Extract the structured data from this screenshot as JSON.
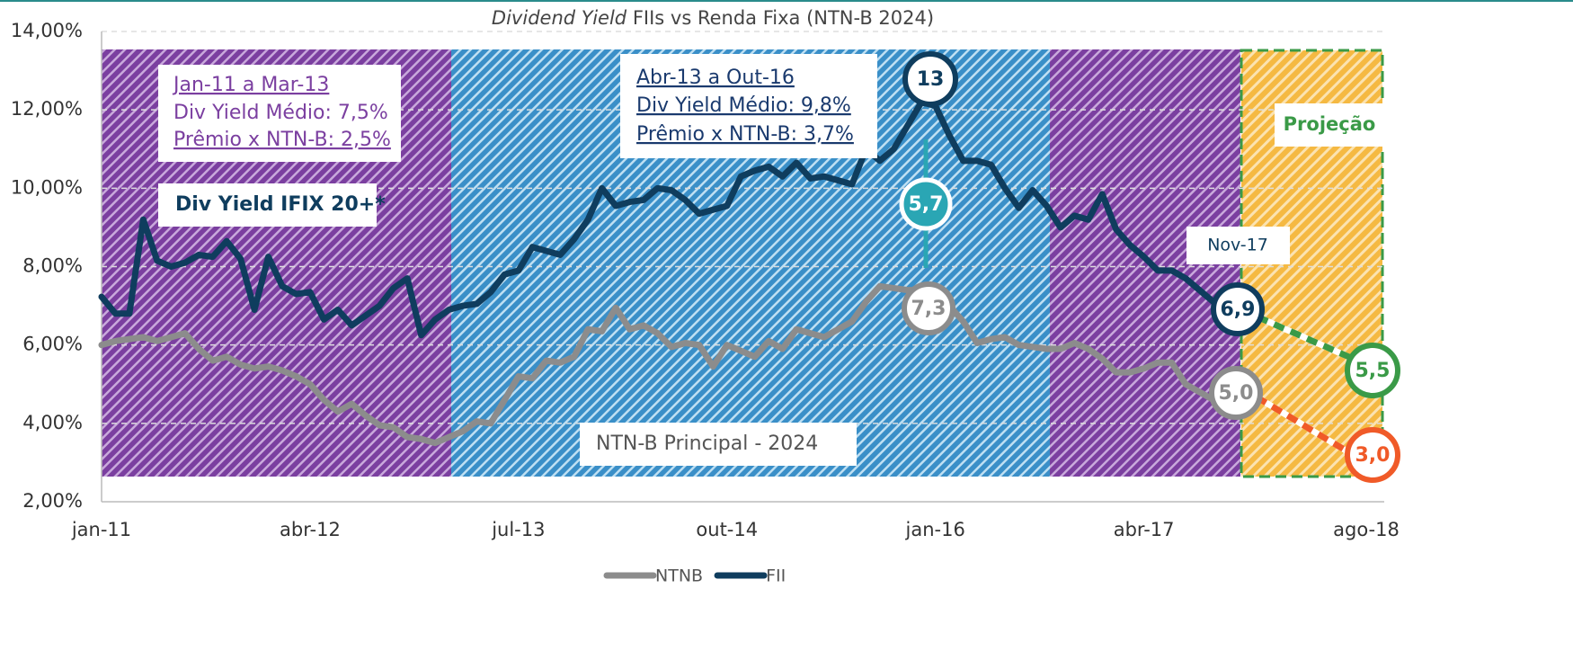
{
  "chart_data": {
    "type": "line",
    "title": [
      "Dividend Yield",
      "FIIs vs Renda Fixa (NTN-B 2024)"
    ],
    "categories": [
      "jan-11",
      null,
      null,
      null,
      null,
      null,
      null,
      null,
      null,
      null,
      null,
      null,
      null,
      null,
      null,
      "abr-12",
      null,
      null,
      null,
      null,
      null,
      null,
      null,
      null,
      null,
      null,
      null,
      null,
      null,
      null,
      "jul-13",
      null,
      null,
      null,
      null,
      null,
      null,
      null,
      null,
      null,
      null,
      null,
      null,
      null,
      null,
      "out-14",
      null,
      null,
      null,
      null,
      null,
      null,
      null,
      null,
      null,
      null,
      null,
      null,
      null,
      null,
      "jan-16",
      null,
      null,
      null,
      null,
      null,
      null,
      null,
      null,
      null,
      null,
      null,
      null,
      null,
      null,
      "abr-17",
      null,
      null,
      null,
      null,
      null,
      null,
      null,
      null,
      null,
      null,
      null,
      null,
      null,
      null,
      null,
      "ago-18"
    ],
    "series": [
      {
        "name": "NTNB",
        "color": "#8c8c8c",
        "values": [
          6.0,
          6.1,
          6.15,
          6.2,
          6.1,
          6.2,
          6.3,
          5.9,
          5.6,
          5.7,
          5.5,
          5.4,
          5.45,
          5.35,
          5.2,
          5.0,
          4.6,
          4.3,
          4.5,
          4.2,
          3.95,
          3.9,
          3.65,
          3.6,
          3.5,
          3.65,
          3.8,
          4.05,
          4.0,
          4.6,
          5.2,
          5.15,
          5.6,
          5.55,
          5.7,
          6.4,
          6.35,
          6.95,
          6.4,
          6.5,
          6.3,
          5.95,
          6.05,
          6.0,
          5.45,
          6.0,
          5.85,
          5.7,
          6.1,
          5.9,
          6.4,
          6.3,
          6.2,
          6.4,
          6.6,
          7.1,
          7.5,
          7.45,
          7.4,
          7.4,
          7.3,
          7.0,
          6.6,
          6.05,
          6.15,
          6.2,
          6.0,
          5.95,
          5.9,
          5.9,
          6.05,
          5.9,
          5.65,
          5.3,
          5.3,
          5.4,
          5.55,
          5.55,
          5.0,
          4.8,
          4.6,
          4.45,
          4.9,
          null,
          null,
          null,
          null,
          null,
          null,
          null,
          null,
          null
        ]
      },
      {
        "name": "FII",
        "color": "#0f3d5e",
        "values": [
          7.23,
          6.8,
          6.8,
          9.2,
          8.15,
          8.0,
          8.1,
          8.3,
          8.25,
          8.65,
          8.2,
          6.9,
          8.25,
          7.5,
          7.3,
          7.35,
          6.65,
          6.9,
          6.5,
          6.75,
          7.0,
          7.45,
          7.7,
          6.25,
          6.65,
          6.9,
          7.0,
          7.05,
          7.35,
          7.8,
          7.9,
          8.5,
          8.4,
          8.3,
          8.7,
          9.2,
          10.0,
          9.55,
          9.65,
          9.7,
          10.0,
          9.95,
          9.7,
          9.35,
          9.45,
          9.55,
          10.3,
          10.45,
          10.55,
          10.3,
          10.65,
          10.25,
          10.3,
          10.2,
          10.1,
          11.0,
          10.7,
          11.0,
          11.6,
          12.2,
          12.1,
          11.35,
          10.7,
          10.7,
          10.6,
          10.0,
          9.5,
          9.95,
          9.55,
          9.0,
          9.3,
          9.2,
          9.85,
          8.95,
          8.55,
          8.25,
          7.9,
          7.9,
          7.7,
          7.4,
          7.1,
          6.95,
          6.9,
          null,
          null,
          null,
          null,
          null,
          null,
          null,
          null,
          null
        ]
      }
    ],
    "projections": [
      {
        "color": "#3a9a47",
        "values": [
          null,
          null,
          null,
          null,
          null,
          null,
          null,
          null,
          null,
          null,
          null,
          null,
          null,
          null,
          null,
          null,
          null,
          null,
          null,
          null,
          null,
          null,
          null,
          null,
          null,
          null,
          null,
          null,
          null,
          null,
          null,
          null,
          null,
          null,
          null,
          null,
          null,
          null,
          null,
          null,
          null,
          null,
          null,
          null,
          null,
          null,
          null,
          null,
          null,
          null,
          null,
          null,
          null,
          null,
          null,
          null,
          null,
          null,
          null,
          null,
          null,
          null,
          null,
          null,
          null,
          null,
          null,
          null,
          null,
          null,
          null,
          null,
          null,
          null,
          null,
          null,
          null,
          null,
          null,
          null,
          null,
          null,
          6.9,
          6.74,
          6.59,
          6.43,
          6.28,
          6.12,
          5.97,
          5.81,
          5.66,
          5.5
        ]
      },
      {
        "color": "#f05a28",
        "values": [
          null,
          null,
          null,
          null,
          null,
          null,
          null,
          null,
          null,
          null,
          null,
          null,
          null,
          null,
          null,
          null,
          null,
          null,
          null,
          null,
          null,
          null,
          null,
          null,
          null,
          null,
          null,
          null,
          null,
          null,
          null,
          null,
          null,
          null,
          null,
          null,
          null,
          null,
          null,
          null,
          null,
          null,
          null,
          null,
          null,
          null,
          null,
          null,
          null,
          null,
          null,
          null,
          null,
          null,
          null,
          null,
          null,
          null,
          null,
          null,
          null,
          null,
          null,
          null,
          null,
          null,
          null,
          null,
          null,
          null,
          null,
          null,
          null,
          null,
          null,
          null,
          null,
          null,
          null,
          null,
          null,
          null,
          4.9,
          4.69,
          4.48,
          4.27,
          4.06,
          3.84,
          3.63,
          3.42,
          3.21,
          3.0
        ]
      }
    ],
    "ylim": [
      2,
      14
    ],
    "yticks": [
      {
        "value": 2,
        "label": "2,00%"
      },
      {
        "value": 4,
        "label": "4,00%"
      },
      {
        "value": 6,
        "label": "6,00%"
      },
      {
        "value": 8,
        "label": "8,00%"
      },
      {
        "value": 10,
        "label": "10,00%"
      },
      {
        "value": 12,
        "label": "12,00%"
      },
      {
        "value": 14,
        "label": "14,00%"
      }
    ],
    "grid": true,
    "legend": "bottom",
    "annotations": {
      "period1": [
        "Jan-11 a Mar-13",
        "Div Yield Médio: 7,5%",
        "Prêmio x NTN-B: 2,5%"
      ],
      "period2": [
        "Abr-13 a Out-16",
        "Div Yield Médio: 9,8%",
        "Prêmio x NTN-B: 3,7%"
      ],
      "fii_label": "Div Yield IFIX 20+*",
      "ntnb_label": "NTN-B Principal - 2024",
      "date": "Nov-17",
      "projection": "Projeção",
      "bubbles": [
        "13",
        "5,7",
        "7,3",
        "6,9",
        "5,0",
        "5,5",
        "3,0"
      ]
    }
  }
}
